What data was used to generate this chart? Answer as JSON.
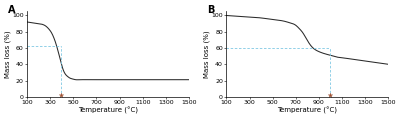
{
  "panel_A": {
    "label": "A",
    "x_data": [
      100,
      150,
      200,
      250,
      270,
      290,
      310,
      330,
      350,
      370,
      390,
      410,
      430,
      450,
      470,
      490,
      520,
      560,
      600,
      700,
      800,
      900,
      1000,
      1100,
      1200,
      1300,
      1400,
      1500
    ],
    "y_data": [
      92,
      91,
      90,
      88,
      86,
      83,
      79,
      73,
      65,
      55,
      44,
      34,
      28,
      25,
      23,
      22,
      21,
      21,
      21,
      21,
      21,
      21,
      21,
      21,
      21,
      21,
      21,
      21
    ],
    "dashed_x": 390,
    "dashed_y": 62,
    "star_x": 390,
    "star_y": 2,
    "xlim": [
      100,
      1500
    ],
    "ylim": [
      0,
      105
    ],
    "xticks": [
      100,
      300,
      500,
      700,
      900,
      1100,
      1300,
      1500
    ],
    "yticks": [
      0,
      20,
      40,
      60,
      80,
      100
    ],
    "xlabel": "Temperature (°C)",
    "ylabel": "Mass loss (%)"
  },
  "panel_B": {
    "label": "B",
    "x_data": [
      100,
      200,
      300,
      400,
      500,
      600,
      650,
      700,
      730,
      760,
      790,
      820,
      850,
      880,
      910,
      950,
      1000,
      1050,
      1100,
      1200,
      1300,
      1400,
      1500
    ],
    "y_data": [
      100,
      99,
      98,
      97,
      95,
      93,
      91,
      88,
      84,
      79,
      72,
      65,
      60,
      57,
      55,
      53,
      51,
      49,
      48,
      46,
      44,
      42,
      40
    ],
    "dashed_x": 1000,
    "dashed_y": 60,
    "star_x": 1000,
    "star_y": 2,
    "xlim": [
      100,
      1500
    ],
    "ylim": [
      0,
      105
    ],
    "xticks": [
      100,
      300,
      500,
      700,
      900,
      1100,
      1300,
      1500
    ],
    "yticks": [
      0,
      20,
      40,
      60,
      80,
      100
    ],
    "xlabel": "Temperature (°C)",
    "ylabel": "Mass loss (%)"
  },
  "line_color": "#2a2a2a",
  "dashed_color": "#7ec8e3",
  "star_color": "#a05030",
  "background": "#ffffff",
  "tick_fontsize": 4.5,
  "label_fontsize": 5.0,
  "panel_label_fontsize": 7
}
